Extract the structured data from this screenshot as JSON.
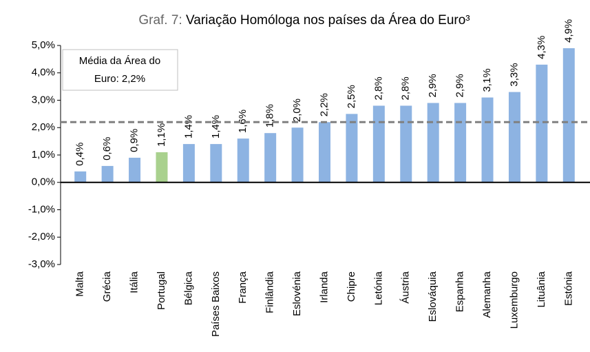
{
  "chart_data": {
    "type": "bar",
    "title_prefix": "Graf. 7:",
    "title": "Variação Homóloga nos países da Área do Euro³",
    "categories": [
      "Malta",
      "Grécia",
      "Itália",
      "Portugal",
      "Bélgica",
      "Países Baixos",
      "França",
      "Finlândia",
      "Eslovénia",
      "Irlanda",
      "Chipre",
      "Letónia",
      "Áustria",
      "Eslováquia",
      "Espanha",
      "Alemanha",
      "Luxemburgo",
      "Lituânia",
      "Estónia"
    ],
    "values": [
      0.4,
      0.6,
      0.9,
      1.1,
      1.4,
      1.4,
      1.6,
      1.8,
      2.0,
      2.2,
      2.5,
      2.8,
      2.8,
      2.9,
      2.9,
      3.1,
      3.3,
      4.3,
      4.9
    ],
    "value_labels": [
      "0,4%",
      "0,6%",
      "0,9%",
      "1,1%",
      "1,4%",
      "1,4%",
      "1,6%",
      "1,8%",
      "2,0%",
      "2,2%",
      "2,5%",
      "2,8%",
      "2,8%",
      "2,9%",
      "2,9%",
      "3,1%",
      "3,3%",
      "4,3%",
      "4,9%"
    ],
    "colors": [
      "#8db3e2",
      "#8db3e2",
      "#8db3e2",
      "#a9d18e",
      "#8db3e2",
      "#8db3e2",
      "#8db3e2",
      "#8db3e2",
      "#8db3e2",
      "#8db3e2",
      "#8db3e2",
      "#8db3e2",
      "#8db3e2",
      "#8db3e2",
      "#8db3e2",
      "#8db3e2",
      "#8db3e2",
      "#8db3e2",
      "#8db3e2"
    ],
    "ylim": [
      -3,
      5
    ],
    "yticks": [
      {
        "value": -3,
        "label": "-3,0%"
      },
      {
        "value": -2,
        "label": "-2,0%"
      },
      {
        "value": -1,
        "label": "-1,0%"
      },
      {
        "value": 0,
        "label": "0,0%"
      },
      {
        "value": 1,
        "label": "1,0%"
      },
      {
        "value": 2,
        "label": "2,0%"
      },
      {
        "value": 3,
        "label": "3,0%"
      },
      {
        "value": 4,
        "label": "4,0%"
      },
      {
        "value": 5,
        "label": "5,0%"
      }
    ],
    "reference_line": {
      "value": 2.2,
      "color": "#808080",
      "annotation": [
        "Média da Área do",
        "Euro: 2,2%"
      ]
    }
  }
}
